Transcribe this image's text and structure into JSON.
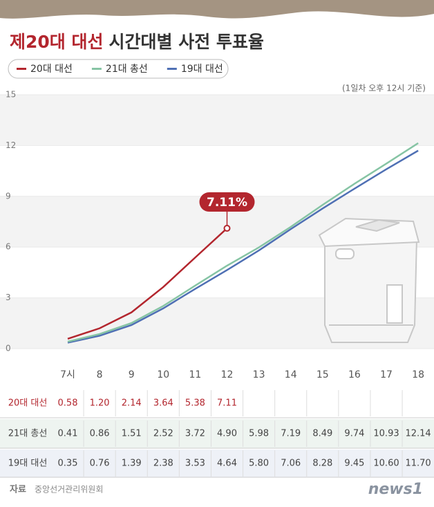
{
  "chart_data": {
    "type": "line",
    "title_highlight": "제20대 대선",
    "title": "시간대별 사전 투표율",
    "note": "(1일차 오후 12시 기준)",
    "annotation": "7.11%",
    "categories": [
      "7시",
      "8",
      "9",
      "10",
      "11",
      "12",
      "13",
      "14",
      "15",
      "16",
      "17",
      "18"
    ],
    "ylim": [
      0,
      15
    ],
    "yticks": [
      0,
      3,
      6,
      9,
      12,
      15
    ],
    "grid": true,
    "series": [
      {
        "name": "20대 대선",
        "color": "#b3262e",
        "values": [
          0.58,
          1.2,
          2.14,
          3.64,
          5.38,
          7.11,
          null,
          null,
          null,
          null,
          null,
          null
        ],
        "value_labels": [
          "0.58",
          "1.20",
          "2.14",
          "3.64",
          "5.38",
          "7.11",
          null,
          null,
          null,
          null,
          null,
          null
        ]
      },
      {
        "name": "21대 총선",
        "color": "#86c4a4",
        "values": [
          0.41,
          0.86,
          1.51,
          2.52,
          3.72,
          4.9,
          5.98,
          7.19,
          8.49,
          9.74,
          10.93,
          12.14
        ],
        "value_labels": [
          "0.41",
          "0.86",
          "1.51",
          "2.52",
          "3.72",
          "4.90",
          "5.98",
          "7.19",
          "8.49",
          "9.74",
          "10.93",
          "12.14"
        ]
      },
      {
        "name": "19대 대선",
        "color": "#4f70b4",
        "values": [
          0.35,
          0.76,
          1.39,
          2.38,
          3.53,
          4.64,
          5.8,
          7.06,
          8.28,
          9.45,
          10.6,
          11.7
        ],
        "value_labels": [
          "0.35",
          "0.76",
          "1.39",
          "2.38",
          "3.53",
          "4.64",
          "5.80",
          "7.06",
          "8.28",
          "9.45",
          "10.60",
          "11.70"
        ]
      }
    ],
    "source_label": "자료",
    "source": "중앙선거관리위원회",
    "logo": "news1"
  }
}
